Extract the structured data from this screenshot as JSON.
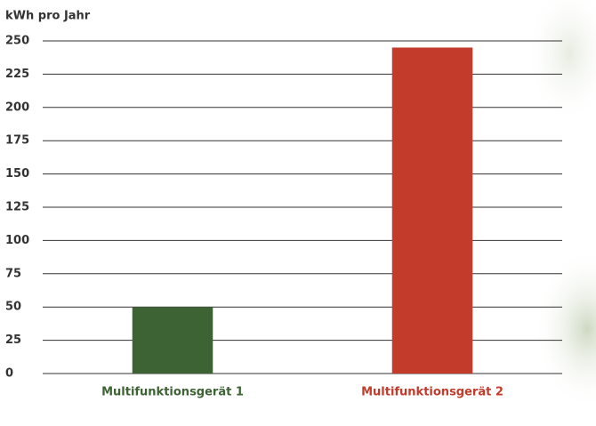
{
  "chart_data": {
    "type": "bar",
    "y_label": "kWh pro Jahr",
    "categories": [
      "Multifunktionsgerät 1",
      "Multifunktionsgerät 2"
    ],
    "values": [
      50,
      245
    ],
    "colors": [
      "#3d6334",
      "#c23b2b"
    ],
    "ylim": [
      0,
      250
    ],
    "yticks": [
      0,
      25,
      50,
      75,
      100,
      125,
      150,
      175,
      200,
      225,
      250
    ],
    "grid": true
  }
}
